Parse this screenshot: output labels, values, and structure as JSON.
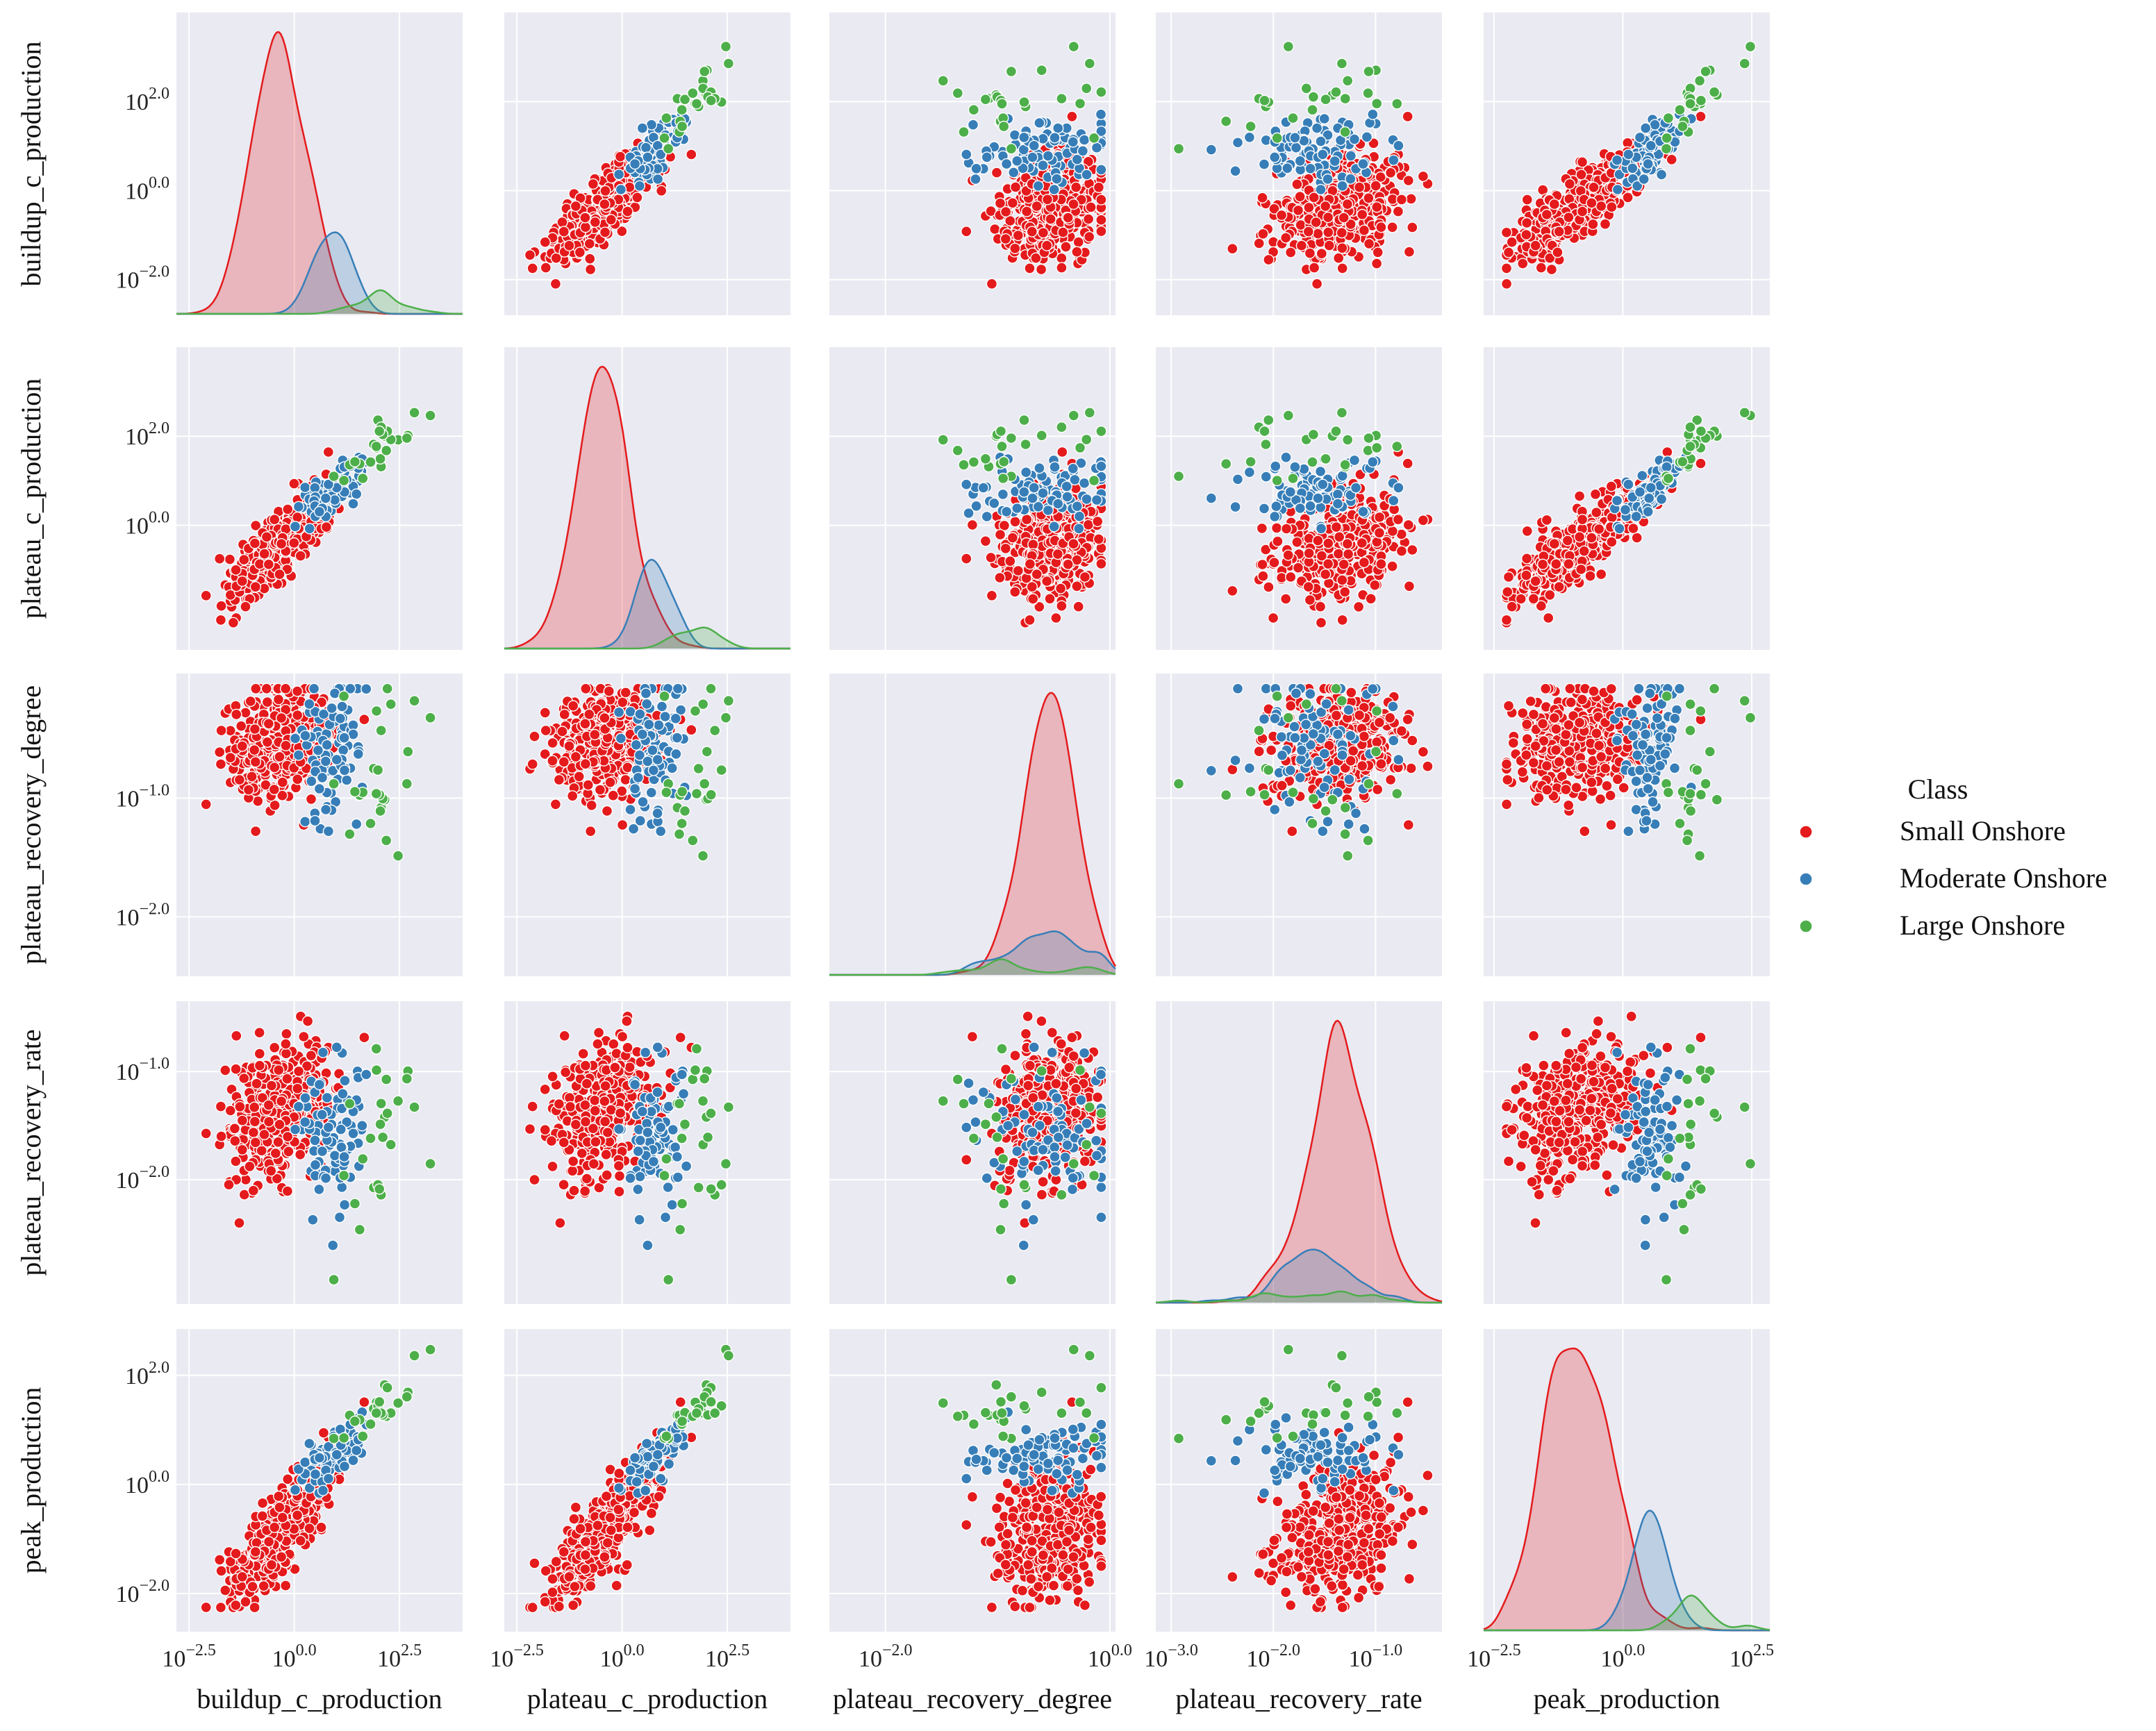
{
  "chart_data": {
    "type": "scatter",
    "subtype": "pairplot",
    "variables": [
      "buildup_c_production",
      "plateau_c_production",
      "plateau_recovery_degree",
      "plateau_recovery_rate",
      "peak_production"
    ],
    "scale": "log10",
    "ranges": {
      "buildup_c_production": [
        -2.8,
        4.0
      ],
      "plateau_c_production": [
        -2.8,
        4.0
      ],
      "plateau_recovery_degree": [
        -2.5,
        0.05
      ],
      "plateau_recovery_rate": [
        -3.15,
        -0.35
      ],
      "peak_production": [
        -2.7,
        2.85
      ]
    },
    "ticks": {
      "buildup_c_production": [
        "−2.5",
        "0.0",
        "2.5"
      ],
      "plateau_c_production": [
        "−2.5",
        "0.0",
        "2.5"
      ],
      "plateau_recovery_degree": [
        "−2.0",
        "0.0"
      ],
      "plateau_recovery_rate": [
        "−3.0",
        "−2.0",
        "−1.0"
      ],
      "peak_production": [
        "−2.5",
        "0.0",
        "2.5"
      ]
    },
    "yticks": {
      "buildup_c_production": [
        "−2.0",
        "0.0",
        "2.0"
      ],
      "plateau_c_production": [
        "0.0",
        "2.0"
      ],
      "plateau_recovery_degree": [
        "−2.0",
        "−1.0"
      ],
      "plateau_recovery_rate": [
        "−2.0",
        "−1.0"
      ],
      "peak_production": [
        "−2.0",
        "0.0",
        "2.0"
      ]
    },
    "ytick_values": {
      "buildup_c_production": [
        -2,
        0,
        2
      ],
      "plateau_c_production": [
        0,
        2
      ],
      "plateau_recovery_degree": [
        -2,
        -1
      ],
      "plateau_recovery_rate": [
        -2,
        -1
      ],
      "peak_production": [
        -2,
        0,
        2
      ]
    },
    "xtick_values": {
      "buildup_c_production": [
        -2.5,
        0,
        2.5
      ],
      "plateau_c_production": [
        -2.5,
        0,
        2.5
      ],
      "plateau_recovery_degree": [
        -2,
        0
      ],
      "plateau_recovery_rate": [
        -3,
        -2,
        -1
      ],
      "peak_production": [
        -2.5,
        0,
        2.5
      ]
    },
    "tick_base": "10",
    "series": [
      {
        "name": "Small Onshore",
        "color": "#e41a1c",
        "approx_mean_log10": {
          "buildup_c_production": -0.35,
          "plateau_c_production": -0.45,
          "plateau_recovery_degree": -0.55,
          "plateau_recovery_rate": -1.35,
          "peak_production": -0.9
        },
        "approx_sd_log10": {
          "buildup_c_production": 0.6,
          "plateau_c_production": 0.6,
          "plateau_recovery_degree": 0.22,
          "plateau_recovery_rate": 0.3,
          "peak_production": 0.6
        },
        "approx_count": 420
      },
      {
        "name": "Moderate Onshore",
        "color": "#377eb8",
        "approx_mean_log10": {
          "buildup_c_production": 0.9,
          "plateau_c_production": 0.75,
          "plateau_recovery_degree": -0.65,
          "plateau_recovery_rate": -1.55,
          "peak_production": 0.5
        },
        "approx_sd_log10": {
          "buildup_c_production": 0.45,
          "plateau_c_production": 0.4,
          "plateau_recovery_degree": 0.35,
          "plateau_recovery_rate": 0.35,
          "peak_production": 0.35
        },
        "approx_count": 90
      },
      {
        "name": "Large Onshore",
        "color": "#4daf4a",
        "approx_mean_log10": {
          "buildup_c_production": 2.2,
          "plateau_c_production": 1.9,
          "plateau_recovery_degree": -0.7,
          "plateau_recovery_rate": -1.6,
          "peak_production": 1.5
        },
        "approx_sd_log10": {
          "buildup_c_production": 0.55,
          "plateau_c_production": 0.5,
          "plateau_recovery_degree": 0.45,
          "plateau_recovery_rate": 0.4,
          "peak_production": 0.4
        },
        "approx_count": 25
      }
    ],
    "legend": {
      "title": "Class",
      "position": "right",
      "entries": [
        "Small Onshore",
        "Moderate Onshore",
        "Large Onshore"
      ]
    },
    "grid": true
  }
}
